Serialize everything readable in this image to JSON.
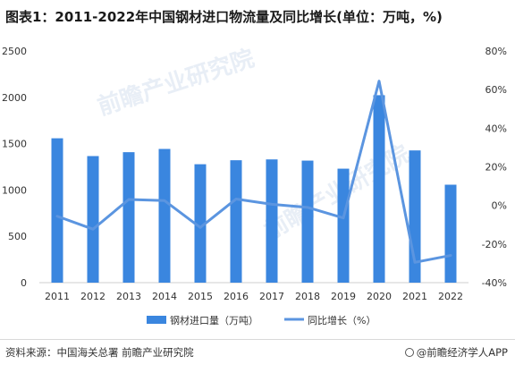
{
  "title": "图表1：2011-2022年中国钢材进口物流量及同比增长(单位：万吨，%)",
  "watermark": "前瞻产业研究院",
  "source": "资料来源：中国海关总署 前瞻产业研究院",
  "brand": "@前瞻经济学人APP",
  "colors": {
    "bar": "#3a86df",
    "line": "#5b95e0",
    "axis_text": "#333333",
    "grid": "#e6e6e6"
  },
  "chart_data": {
    "type": "bar",
    "categories": [
      "2011",
      "2012",
      "2013",
      "2014",
      "2015",
      "2016",
      "2017",
      "2018",
      "2019",
      "2020",
      "2021",
      "2022"
    ],
    "series": [
      {
        "name": "钢材进口量（万吨）",
        "type": "bar",
        "axis": "left",
        "values": [
          1558,
          1366,
          1408,
          1443,
          1278,
          1321,
          1330,
          1317,
          1230,
          2023,
          1427,
          1057
        ]
      },
      {
        "name": "同比增长（%）",
        "type": "line",
        "axis": "right",
        "values": [
          -5.6,
          -12.3,
          3.1,
          2.5,
          -11.4,
          3.3,
          0.6,
          -1.0,
          -6.5,
          64.4,
          -29.5,
          -25.9
        ]
      }
    ],
    "y_left": {
      "ylim": [
        0,
        2500
      ],
      "ticks": [
        "0",
        "500",
        "1000",
        "1500",
        "2000",
        "2500"
      ]
    },
    "y_right": {
      "ylim": [
        -40,
        80
      ],
      "ticks": [
        "-40%",
        "-20%",
        "0%",
        "20%",
        "40%",
        "60%",
        "80%"
      ]
    },
    "grid": false,
    "legend_position": "bottom-center"
  }
}
